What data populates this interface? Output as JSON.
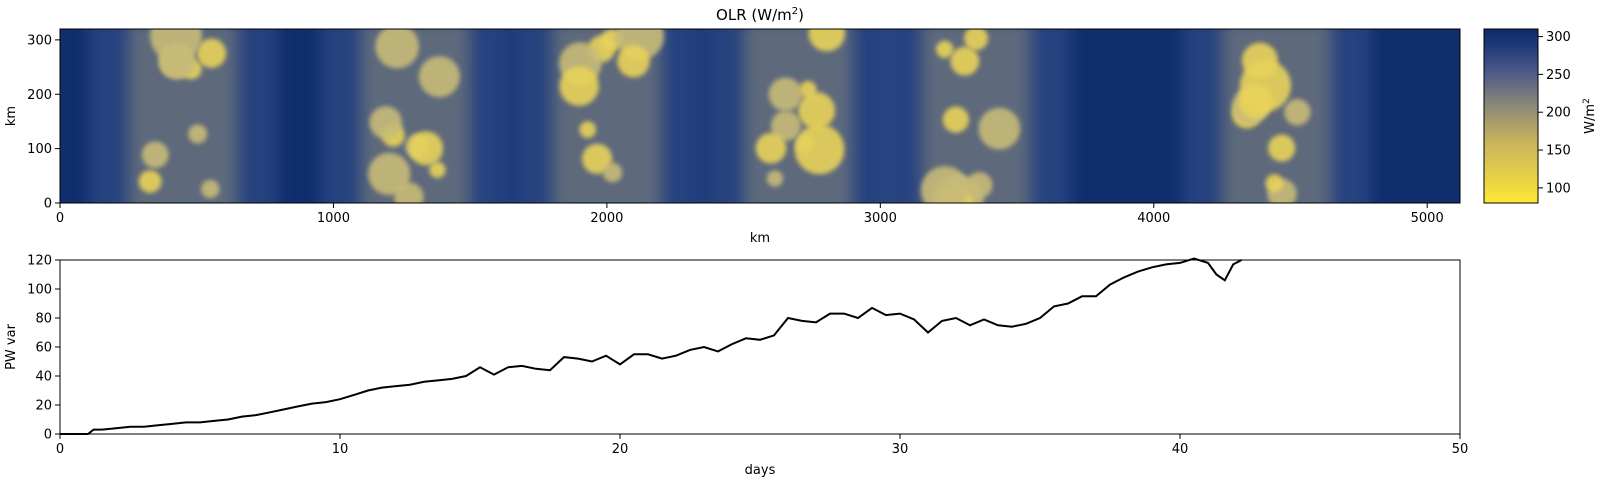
{
  "chart_data": [
    {
      "type": "heatmap",
      "title": "OLR (W/m",
      "title_sup": "2",
      "title_suffix": ")",
      "xlabel": "km",
      "ylabel": "km",
      "xlim": [
        0,
        5120
      ],
      "ylim": [
        0,
        320
      ],
      "xticks": [
        0,
        1000,
        2000,
        3000,
        4000,
        5000
      ],
      "yticks": [
        0,
        100,
        200,
        300
      ],
      "colormap": "cividis",
      "colors": {
        "high": "#0d2a6b",
        "mid": "#6e6d6e",
        "low": "#fde737"
      },
      "colorbar": {
        "label": "W/m",
        "label_sup": "2",
        "range": [
          80,
          310
        ],
        "ticks": [
          100,
          150,
          200,
          250,
          300
        ]
      },
      "convective_bands_center_km": [
        450,
        1300,
        2000,
        2700,
        3350,
        4450
      ]
    },
    {
      "type": "line",
      "title": "",
      "xlabel": "days",
      "ylabel": "PW var",
      "xlim": [
        0,
        50
      ],
      "ylim": [
        0,
        120
      ],
      "xticks": [
        0,
        10,
        20,
        30,
        40,
        50
      ],
      "yticks": [
        0,
        20,
        40,
        60,
        80,
        100,
        120
      ],
      "line_color": "#000000",
      "series": [
        {
          "x": [
            0,
            1,
            1.2,
            1.5,
            2,
            2.5,
            3,
            3.5,
            4,
            4.5,
            5,
            5.5,
            6,
            6.5,
            7,
            7.5,
            8,
            8.5,
            9,
            9.5,
            10,
            10.5,
            11,
            11.5,
            12,
            12.5,
            13,
            13.5,
            14,
            14.5,
            15,
            15.5,
            16,
            16.5,
            17,
            17.5,
            18,
            18.5,
            19,
            19.5,
            20,
            20.5,
            21,
            21.5,
            22,
            22.5,
            23,
            23.5,
            24,
            24.5,
            25,
            25.5,
            26,
            26.5,
            27,
            27.5,
            28,
            28.5,
            29,
            29.5,
            30,
            30.5,
            31,
            31.5,
            32,
            32.5,
            33,
            33.5,
            34,
            34.5,
            35,
            35.5,
            36,
            36.5,
            37,
            37.5,
            38,
            38.5,
            39,
            39.5,
            40,
            40.5,
            41,
            41.3,
            41.6,
            41.9,
            42.2
          ],
          "y": [
            0,
            0,
            3,
            3,
            4,
            5,
            5,
            6,
            7,
            8,
            8,
            9,
            10,
            12,
            13,
            15,
            17,
            19,
            21,
            22,
            24,
            27,
            30,
            32,
            33,
            34,
            36,
            37,
            38,
            40,
            46,
            41,
            46,
            47,
            45,
            44,
            53,
            52,
            50,
            54,
            48,
            55,
            55,
            52,
            54,
            58,
            60,
            57,
            62,
            66,
            65,
            68,
            80,
            78,
            77,
            83,
            83,
            80,
            87,
            82,
            83,
            79,
            70,
            78,
            80,
            75,
            79,
            75,
            74,
            76,
            80,
            88,
            90,
            95,
            95,
            103,
            108,
            112,
            115,
            117,
            118,
            121,
            118,
            110,
            106,
            117,
            120
          ]
        }
      ]
    }
  ]
}
